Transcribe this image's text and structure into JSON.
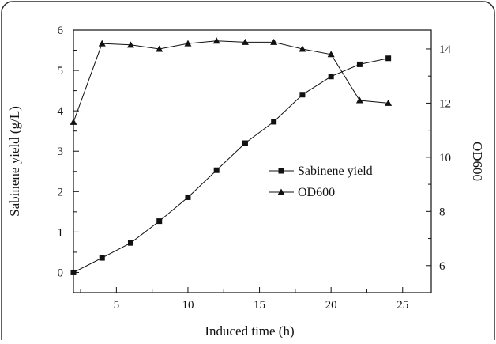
{
  "colors": {
    "ink": "#111111",
    "frame": "#2a2a2a",
    "background": "#ffffff"
  },
  "chart_data": {
    "type": "line",
    "xlabel": "Induced time (h)",
    "ylabel": "Sabinene yield (g/L)",
    "y2label": "OD600",
    "xlim": [
      2,
      27
    ],
    "ylim": [
      -0.5,
      6
    ],
    "y2lim": [
      5,
      14.7
    ],
    "x_ticks": [
      5,
      10,
      15,
      20,
      25
    ],
    "y_ticks": [
      0,
      1,
      2,
      3,
      4,
      5,
      6
    ],
    "y2_ticks": [
      6,
      8,
      10,
      12,
      14
    ],
    "legend_position": "center-right",
    "grid": false,
    "series": [
      {
        "name": "Sabinene yield",
        "axis": "left",
        "marker": "square",
        "x": [
          2,
          4,
          6,
          8,
          10,
          12,
          14,
          16,
          18,
          20,
          22,
          24
        ],
        "y": [
          0.0,
          0.36,
          0.73,
          1.27,
          1.86,
          2.53,
          3.2,
          3.73,
          4.4,
          4.85,
          5.15,
          5.3
        ]
      },
      {
        "name": "OD600",
        "axis": "right",
        "marker": "triangle",
        "x": [
          2,
          4,
          6,
          8,
          10,
          12,
          14,
          16,
          18,
          20,
          22,
          24
        ],
        "y": [
          11.3,
          14.2,
          14.15,
          14.0,
          14.2,
          14.3,
          14.25,
          14.25,
          14.0,
          13.8,
          12.1,
          12.0
        ]
      }
    ]
  }
}
